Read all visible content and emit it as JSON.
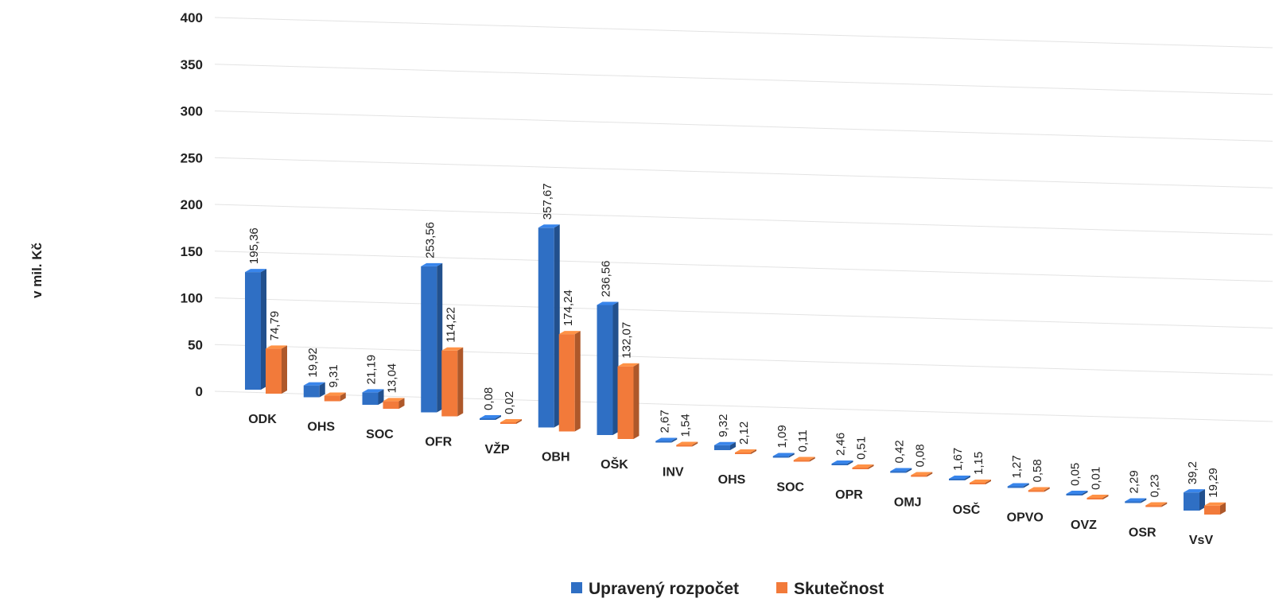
{
  "chart_data": {
    "type": "bar",
    "ylabel": "v mil. Kč",
    "ylim": [
      0,
      400
    ],
    "yticks": [
      "0",
      "50",
      "100",
      "150",
      "200",
      "250",
      "300",
      "350",
      "400"
    ],
    "categories": [
      "ODK",
      "OHS",
      "SOC",
      "OFR",
      "VŽP",
      "OBH",
      "OŠK",
      "INV",
      "OHS",
      "SOC",
      "OPR",
      "OMJ",
      "OSČ",
      "OPVO",
      "OVZ",
      "OSR",
      "VsV"
    ],
    "series": [
      {
        "name": "Upravený rozpočet",
        "color": "#2f6fc4",
        "values": [
          195.36,
          19.92,
          21.19,
          253.56,
          0.08,
          357.67,
          236.56,
          2.67,
          9.32,
          1.09,
          2.46,
          0.42,
          1.67,
          1.27,
          0.05,
          2.29,
          39.2
        ],
        "labels": [
          "195,36",
          "19,92",
          "21,19",
          "253,56",
          "0,08",
          "357,67",
          "236,56",
          "2,67",
          "9,32",
          "1,09",
          "2,46",
          "0,42",
          "1,67",
          "1,27",
          "0,05",
          "2,29",
          "39,2"
        ]
      },
      {
        "name": "Skutečnost",
        "color": "#f27a3a",
        "values": [
          74.79,
          9.31,
          13.04,
          114.22,
          0.02,
          174.24,
          132.07,
          1.54,
          2.12,
          0.11,
          0.51,
          0.08,
          1.15,
          0.58,
          0.01,
          0.23,
          19.29
        ],
        "labels": [
          "74,79",
          "9,31",
          "13,04",
          "114,22",
          "0,02",
          "174,24",
          "132,07",
          "1,54",
          "2,12",
          "0,11",
          "0,51",
          "0,08",
          "1,15",
          "0,58",
          "0,01",
          "0,23",
          "19,29"
        ]
      }
    ],
    "grid": true,
    "legend_position": "bottom"
  }
}
